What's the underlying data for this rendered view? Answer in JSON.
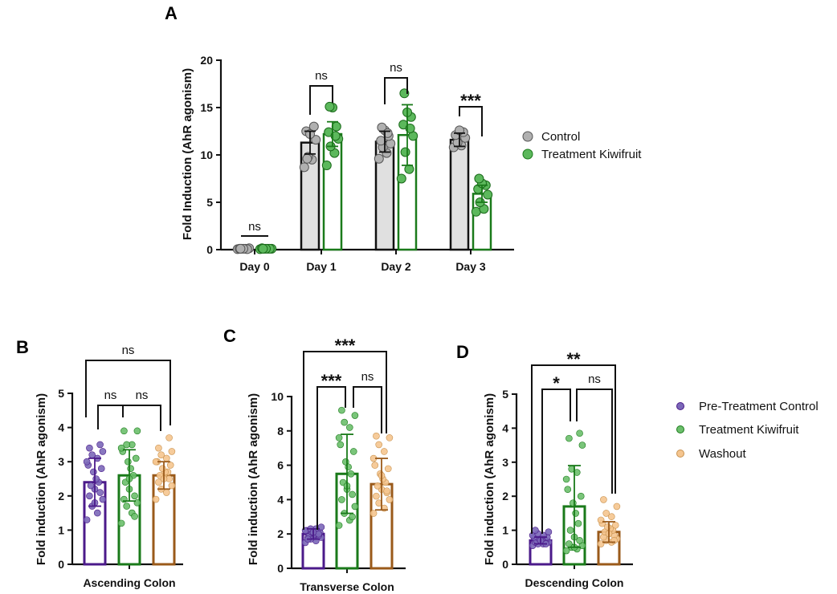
{
  "chart_data": [
    {
      "panel": "A",
      "type": "bar",
      "ylabel": "Fold Induction (AhR agonism)",
      "xlabel": "",
      "ylim": [
        0,
        20
      ],
      "yticks": [
        0,
        5,
        10,
        15,
        20
      ],
      "categories": [
        "Day 0",
        "Day 1",
        "Day 2",
        "Day 3"
      ],
      "series": [
        {
          "name": "Control",
          "fill": "#e0e0e0",
          "stroke": "#111111",
          "dot": "#b0b0b0",
          "values": [
            0.1,
            11.3,
            11.4,
            11.6
          ],
          "err": [
            0.05,
            1.2,
            1.1,
            0.7
          ],
          "points": [
            [
              0.05,
              0.1,
              0.1,
              0.15,
              0.1,
              0.05,
              0.1,
              0.1
            ],
            [
              8.7,
              9.5,
              9.8,
              11.6,
              12.5,
              13.0,
              12.2,
              9.6
            ],
            [
              9.6,
              10.2,
              10.8,
              11.2,
              11.5,
              12.0,
              12.6,
              12.9,
              12.3
            ],
            [
              10.8,
              11.0,
              11.3,
              11.8,
              12.1,
              12.4,
              12.6
            ]
          ]
        },
        {
          "name": "Treatment Kiwifruit",
          "fill": "#ffffff",
          "stroke": "#1a7a1a",
          "dot": "#5cb85c",
          "values": [
            0.1,
            12.2,
            12.1,
            5.9
          ],
          "err": [
            0.05,
            1.3,
            3.2,
            0.9
          ],
          "points": [
            [
              0.05,
              0.1,
              0.1,
              0.1,
              0.15,
              0.1,
              0.1,
              0.1
            ],
            [
              8.9,
              10.2,
              10.9,
              11.7,
              12.4,
              13.0,
              15.0,
              15.1,
              12.0
            ],
            [
              7.5,
              8.5,
              10.3,
              12.0,
              13.2,
              14.0,
              14.5,
              16.5,
              12.8
            ],
            [
              4.0,
              4.3,
              5.0,
              5.8,
              6.4,
              6.8,
              7.0,
              7.5
            ]
          ]
        }
      ],
      "legend": [
        "Control",
        "Treatment Kiwifruit"
      ],
      "annotations": [
        "ns",
        "ns",
        "ns",
        "***"
      ]
    },
    {
      "panel": "B",
      "type": "bar",
      "ylabel": "Fold induction (AhR agonism)",
      "xlabel": "Ascending Colon",
      "ylim": [
        0,
        5
      ],
      "yticks": [
        0,
        1,
        2,
        3,
        4,
        5
      ],
      "categories": [
        "Pre-Treatment Control",
        "Treatment Kiwifruit",
        "Washout"
      ],
      "values": [
        2.4,
        2.6,
        2.6
      ],
      "err": [
        0.7,
        0.75,
        0.4
      ],
      "points": [
        [
          1.3,
          1.5,
          1.7,
          1.9,
          2.0,
          2.1,
          2.2,
          2.3,
          2.4,
          2.5,
          2.7,
          2.8,
          2.9,
          3.0,
          3.1,
          3.2,
          3.3,
          3.4,
          3.5,
          1.8
        ],
        [
          1.2,
          1.5,
          1.7,
          1.8,
          1.9,
          2.0,
          2.2,
          2.4,
          2.6,
          2.8,
          3.0,
          3.1,
          3.3,
          3.4,
          3.5,
          3.5,
          3.9,
          3.9,
          1.4,
          2.5
        ],
        [
          1.9,
          2.1,
          2.2,
          2.3,
          2.4,
          2.5,
          2.6,
          2.6,
          2.7,
          2.7,
          2.8,
          2.9,
          3.0,
          3.0,
          3.1,
          3.2,
          3.3,
          3.4,
          3.7,
          2.5
        ]
      ],
      "annotations": [
        "ns",
        "ns",
        "ns"
      ]
    },
    {
      "panel": "C",
      "type": "bar",
      "ylabel": "Fold induction (AhR agonism)",
      "xlabel": "Transverse Colon",
      "ylim": [
        0,
        10
      ],
      "yticks": [
        0,
        2,
        4,
        6,
        8,
        10
      ],
      "categories": [
        "Pre-Treatment Control",
        "Treatment Kiwifruit",
        "Washout"
      ],
      "values": [
        2.0,
        5.5,
        4.9
      ],
      "err": [
        0.3,
        2.3,
        1.5
      ],
      "points": [
        [
          1.5,
          1.6,
          1.7,
          1.8,
          1.8,
          1.9,
          1.9,
          2.0,
          2.0,
          2.0,
          2.1,
          2.1,
          2.2,
          2.2,
          2.3,
          2.3,
          2.4,
          1.7,
          2.0,
          2.1
        ],
        [
          2.5,
          2.8,
          3.2,
          3.6,
          4.0,
          4.3,
          4.6,
          5.0,
          5.5,
          5.9,
          6.2,
          6.8,
          7.2,
          7.6,
          8.2,
          8.5,
          8.9,
          9.2,
          3.0,
          4.8
        ],
        [
          3.2,
          3.5,
          3.8,
          4.0,
          4.2,
          4.4,
          4.6,
          4.8,
          5.0,
          5.2,
          5.5,
          5.8,
          6.0,
          6.4,
          6.8,
          7.2,
          7.6,
          7.7,
          4.5,
          5.4
        ]
      ],
      "annotations": [
        "***",
        "ns",
        "***"
      ]
    },
    {
      "panel": "D",
      "type": "bar",
      "ylabel": "Fold induction (AhR agonism)",
      "xlabel": "Descending Colon",
      "ylim": [
        0,
        5
      ],
      "yticks": [
        0,
        1,
        2,
        3,
        4,
        5
      ],
      "categories": [
        "Pre-Treatment Control",
        "Treatment Kiwifruit",
        "Washout"
      ],
      "values": [
        0.7,
        1.7,
        0.95
      ],
      "err": [
        0.1,
        1.2,
        0.3
      ],
      "points": [
        [
          0.55,
          0.6,
          0.6,
          0.65,
          0.65,
          0.7,
          0.7,
          0.7,
          0.7,
          0.75,
          0.75,
          0.8,
          0.8,
          0.85,
          0.85,
          0.9,
          0.95,
          1.0,
          0.6,
          0.7
        ],
        [
          0.4,
          0.45,
          0.5,
          0.55,
          0.6,
          0.7,
          0.8,
          1.0,
          1.2,
          1.5,
          1.8,
          2.0,
          2.2,
          2.5,
          2.7,
          2.8,
          3.5,
          3.7,
          3.85,
          0.5
        ],
        [
          0.6,
          0.65,
          0.7,
          0.75,
          0.8,
          0.85,
          0.9,
          0.95,
          1.0,
          1.05,
          1.1,
          1.15,
          1.2,
          1.3,
          1.4,
          1.5,
          1.7,
          1.9,
          0.7,
          0.9
        ]
      ],
      "annotations": [
        "*",
        "ns",
        "**"
      ]
    }
  ],
  "bcd_legend": [
    "Pre-Treatment Control",
    "Treatment Kiwifruit",
    "Washout"
  ],
  "bcd_colors": {
    "stroke": [
      "#4b1a8a",
      "#1a7a1a",
      "#9a5a1a"
    ],
    "dot": [
      "#7b68b8",
      "#6cbf6c",
      "#f5c58f"
    ]
  }
}
